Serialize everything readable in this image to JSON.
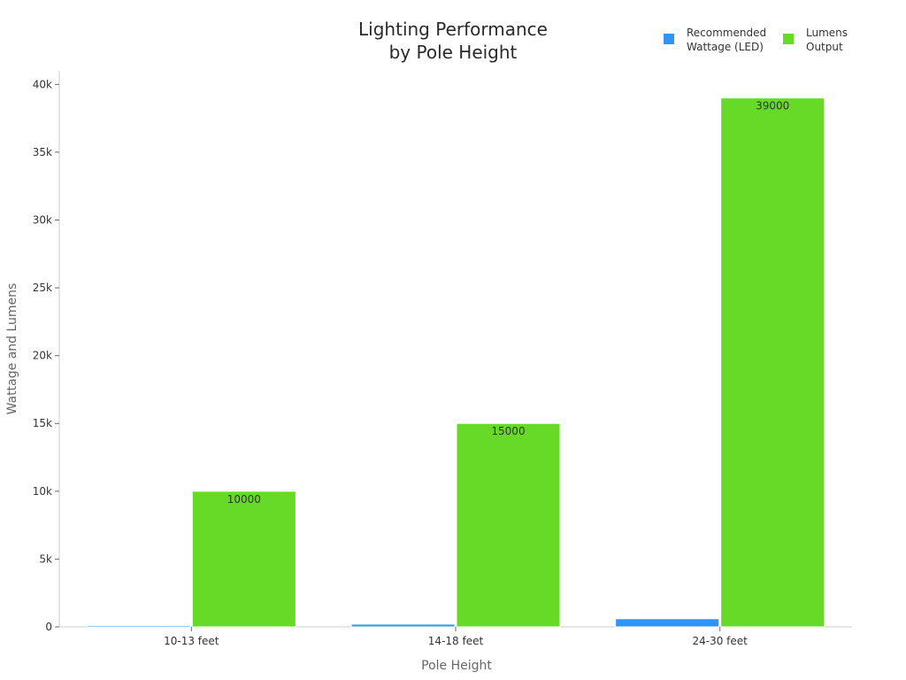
{
  "chart_data": {
    "type": "bar",
    "title": [
      "Lighting Performance",
      "by Pole Height"
    ],
    "xlabel": "Pole Height",
    "ylabel": "Wattage and Lumens",
    "categories": [
      "10-13 feet",
      "14-18 feet",
      "24-30 feet"
    ],
    "series": [
      {
        "name": "Recommended Wattage (LED)",
        "name_lines": [
          "Recommended",
          "Wattage (LED)"
        ],
        "color": "#3194f5",
        "values": [
          100,
          200,
          600
        ],
        "data_labels": [
          "",
          "",
          ""
        ]
      },
      {
        "name": "Lumens Output",
        "name_lines": [
          "Lumens",
          "Output"
        ],
        "color": "#66da26",
        "values": [
          10000,
          15000,
          39000
        ],
        "data_labels": [
          "10000",
          "15000",
          "39000"
        ]
      }
    ],
    "ylim": [
      0,
      41000
    ],
    "yticks": [
      0,
      5000,
      10000,
      15000,
      20000,
      25000,
      30000,
      35000,
      40000
    ],
    "ytick_labels": [
      "0",
      "5k",
      "10k",
      "15k",
      "20k",
      "25k",
      "30k",
      "35k",
      "40k"
    ],
    "grid": false,
    "legend_position": "top-right"
  }
}
